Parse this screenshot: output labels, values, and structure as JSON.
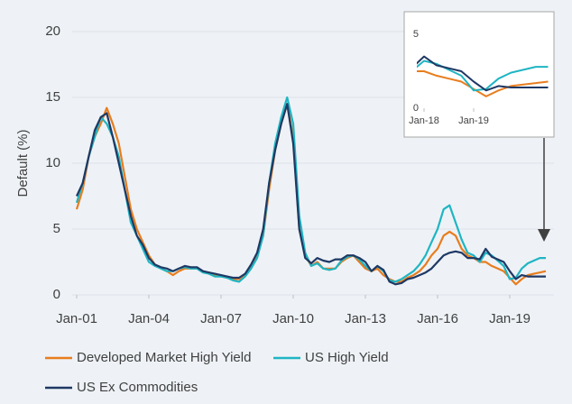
{
  "chart_data": [
    {
      "type": "line",
      "y_label": "Default (%)",
      "x": [
        2001,
        2001.25,
        2001.5,
        2001.75,
        2002,
        2002.25,
        2002.5,
        2002.75,
        2003,
        2003.25,
        2003.5,
        2003.75,
        2004,
        2004.25,
        2004.5,
        2004.75,
        2005,
        2005.25,
        2005.5,
        2005.75,
        2006,
        2006.25,
        2006.5,
        2006.75,
        2007,
        2007.25,
        2007.5,
        2007.75,
        2008,
        2008.25,
        2008.5,
        2008.75,
        2009,
        2009.25,
        2009.5,
        2009.75,
        2010,
        2010.25,
        2010.5,
        2010.75,
        2011,
        2011.25,
        2011.5,
        2011.75,
        2012,
        2012.25,
        2012.5,
        2012.75,
        2013,
        2013.25,
        2013.5,
        2013.75,
        2014,
        2014.25,
        2014.5,
        2014.75,
        2015,
        2015.25,
        2015.5,
        2015.75,
        2016,
        2016.25,
        2016.5,
        2016.75,
        2017,
        2017.25,
        2017.5,
        2017.75,
        2018,
        2018.25,
        2018.5,
        2018.75,
        2019,
        2019.25,
        2019.5,
        2019.75,
        2020,
        2020.25,
        2020.5
      ],
      "series": [
        {
          "name": "Developed Market High Yield",
          "color": "#e87d1e",
          "values": [
            6.5,
            8,
            10.5,
            12,
            13,
            14.2,
            13,
            11.5,
            9,
            6.5,
            5,
            4,
            3,
            2.3,
            2,
            1.8,
            1.5,
            1.8,
            2,
            2,
            2,
            1.8,
            1.6,
            1.5,
            1.4,
            1.3,
            1.2,
            1.2,
            1.5,
            2.2,
            3,
            4.5,
            8,
            11,
            13,
            14.5,
            12,
            5,
            3,
            2.2,
            2.5,
            2,
            2,
            2,
            2.5,
            2.8,
            3,
            2.5,
            2,
            1.8,
            2,
            1.5,
            1.2,
            1,
            1,
            1.3,
            1.5,
            1.8,
            2.3,
            3,
            3.5,
            4.5,
            4.8,
            4.5,
            3.5,
            3,
            2.8,
            2.5,
            2.5,
            2.2,
            2,
            1.8,
            1.3,
            0.8,
            1.2,
            1.5,
            1.6,
            1.7,
            1.8
          ]
        },
        {
          "name": "US High Yield",
          "color": "#1fb5c3",
          "values": [
            7,
            8.5,
            10.5,
            12,
            13.5,
            13,
            12,
            10.5,
            8,
            5.5,
            4.5,
            3.5,
            2.5,
            2.2,
            2,
            1.8,
            1.8,
            2,
            2.1,
            2,
            2,
            1.7,
            1.6,
            1.4,
            1.4,
            1.3,
            1.1,
            1,
            1.4,
            2,
            2.8,
            4.5,
            8.5,
            11.5,
            13.5,
            15,
            13,
            6,
            3.2,
            2.2,
            2.4,
            2,
            1.9,
            2,
            2.6,
            2.9,
            3,
            2.7,
            2.2,
            1.8,
            2.2,
            1.8,
            1.1,
            1,
            1.2,
            1.5,
            1.8,
            2.3,
            3,
            4,
            5,
            6.5,
            6.8,
            5.5,
            4.2,
            3.2,
            3,
            2.5,
            3.2,
            3,
            2.6,
            2.2,
            1.2,
            1.3,
            2,
            2.4,
            2.6,
            2.8,
            2.8
          ]
        },
        {
          "name": "US Ex Commodities",
          "color": "#1f3864",
          "values": [
            7.5,
            8.5,
            10.5,
            12.5,
            13.5,
            13.8,
            12,
            10,
            8,
            6,
            4.5,
            3.8,
            2.8,
            2.3,
            2.1,
            2,
            1.8,
            2,
            2.2,
            2.1,
            2.1,
            1.8,
            1.7,
            1.6,
            1.5,
            1.4,
            1.3,
            1.3,
            1.6,
            2.3,
            3.2,
            5,
            8.5,
            11,
            13,
            14.5,
            11.5,
            5,
            2.8,
            2.4,
            2.8,
            2.6,
            2.5,
            2.7,
            2.7,
            3,
            3,
            2.8,
            2.5,
            1.8,
            2.2,
            1.9,
            1,
            0.8,
            0.9,
            1.2,
            1.3,
            1.5,
            1.7,
            2,
            2.5,
            3,
            3.2,
            3.3,
            3.2,
            2.8,
            2.8,
            2.7,
            3.5,
            2.9,
            2.7,
            2.5,
            1.8,
            1.2,
            1.5,
            1.4,
            1.4,
            1.4,
            1.4
          ]
        }
      ],
      "xlim": [
        2001,
        2020.5
      ],
      "xticks": [
        {
          "value": 2001,
          "label": "Jan-01"
        },
        {
          "value": 2004,
          "label": "Jan-04"
        },
        {
          "value": 2007,
          "label": "Jan-07"
        },
        {
          "value": 2010,
          "label": "Jan-10"
        },
        {
          "value": 2013,
          "label": "Jan-13"
        },
        {
          "value": 2016,
          "label": "Jan-16"
        },
        {
          "value": 2019,
          "label": "Jan-19"
        }
      ],
      "ylim": [
        0,
        20
      ],
      "yticks": [
        0,
        5,
        10,
        15,
        20
      ],
      "grid": true
    },
    {
      "type": "line",
      "xlim": [
        2018,
        2020.5
      ],
      "xticks": [
        {
          "value": 2018,
          "label": "Jan-18"
        },
        {
          "value": 2019,
          "label": "Jan-19"
        }
      ],
      "ylim": [
        0,
        6
      ],
      "yticks": [
        0,
        5
      ]
    }
  ]
}
